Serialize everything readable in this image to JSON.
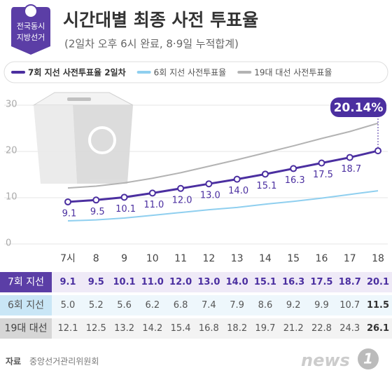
{
  "badge": [
    "전국동시",
    "지방선거"
  ],
  "chart_data": {
    "type": "line",
    "title": "시간대별 최종 사전 투표율",
    "subtitle": "(2일차 오후 6시 완료, 8·9일 누적합계)",
    "categories": [
      "7시",
      "8",
      "9",
      "10",
      "11",
      "12",
      "13",
      "14",
      "15",
      "16",
      "17",
      "18"
    ],
    "series": [
      {
        "name": "7회 지선 사전투표율 2일차",
        "color": "#4b2fa0",
        "values": [
          9.1,
          9.5,
          10.1,
          11.0,
          12.0,
          13.0,
          14.0,
          15.1,
          16.3,
          17.5,
          18.7,
          20.14
        ],
        "value_labels": [
          "9.1",
          "9.5",
          "10.1",
          "11.0",
          "12.0",
          "13.0",
          "14.0",
          "15.1",
          "16.3",
          "17.5",
          "18.7",
          "20.14%"
        ]
      },
      {
        "name": "6회 지선 사전투표율",
        "color": "#8fcfef",
        "values": [
          5.0,
          5.2,
          5.6,
          6.2,
          6.8,
          7.4,
          7.9,
          8.6,
          9.2,
          9.9,
          10.7,
          11.5
        ]
      },
      {
        "name": "19대 대선 사전투표율",
        "color": "#b3b3b3",
        "values": [
          12.1,
          12.5,
          13.2,
          14.2,
          15.4,
          16.8,
          18.2,
          19.7,
          21.2,
          22.8,
          24.3,
          26.1
        ]
      }
    ],
    "ylim": [
      0,
      30
    ],
    "yticks": [
      0,
      10,
      20,
      30
    ],
    "grid": true
  },
  "table": {
    "rows": [
      {
        "label": "7회 지선",
        "cells": [
          "9.1",
          "9.5",
          "10.1",
          "11.0",
          "12.0",
          "13.0",
          "14.0",
          "15.1",
          "16.3",
          "17.5",
          "18.7",
          "20.1"
        ]
      },
      {
        "label": "6회 지선",
        "cells": [
          "5.0",
          "5.2",
          "5.6",
          "6.2",
          "6.8",
          "7.4",
          "7.9",
          "8.6",
          "9.2",
          "9.9",
          "10.7",
          "11.5"
        ]
      },
      {
        "label": "19대 대선",
        "cells": [
          "12.1",
          "12.5",
          "13.2",
          "14.2",
          "15.4",
          "16.8",
          "18.2",
          "19.7",
          "21.2",
          "22.8",
          "24.3",
          "26.1"
        ]
      }
    ]
  },
  "footer": {
    "source_label": "자료",
    "source": "중앙선거관리위원회",
    "logo_text": "news",
    "logo_mark": "1"
  }
}
